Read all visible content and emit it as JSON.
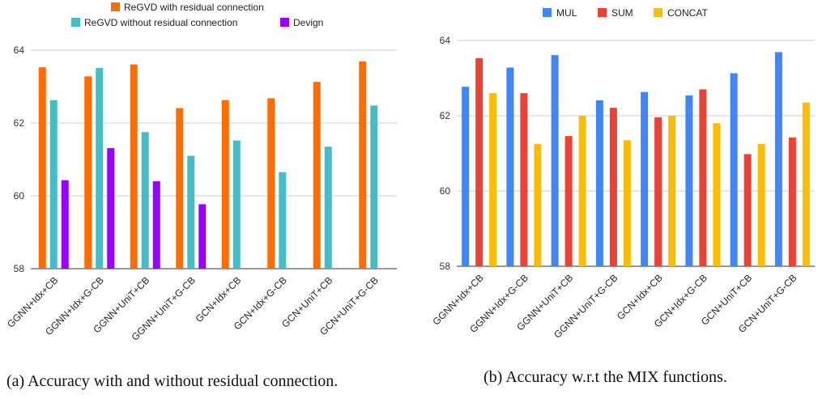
{
  "chart_data": [
    {
      "type": "bar",
      "caption": "(a) Accuracy with and without residual connection.",
      "categories": [
        "GGNN+Idx+CB",
        "GGNN+Idx+G-CB",
        "GGNN+UniT+CB",
        "GGNN+UniT+G-CB",
        "GCN+Idx+CB",
        "GCN+Idx+G-CB",
        "GCN+UniT+CB",
        "GCN+UniT+G-CB"
      ],
      "series": [
        {
          "name": "ReGVD  with residual connection",
          "color": "#ff6d01",
          "values": [
            63.53,
            63.28,
            63.61,
            62.41,
            62.63,
            62.68,
            63.13,
            63.69
          ]
        },
        {
          "name": "ReGVD without residual connection",
          "color": "#46bdc6",
          "values": [
            62.63,
            63.51,
            61.75,
            61.1,
            61.52,
            60.65,
            61.35,
            62.48
          ]
        },
        {
          "name": "Devign",
          "color": "#9900ff",
          "values": [
            60.43,
            61.31,
            60.4,
            59.77,
            null,
            null,
            null,
            null
          ]
        }
      ],
      "ylim": [
        58,
        64
      ],
      "yticks": [
        "58",
        "60",
        "62",
        "64"
      ],
      "legend": "top",
      "grid": true
    },
    {
      "type": "bar",
      "caption": "(b) Accuracy w.r.t the MIX functions.",
      "categories": [
        "GGNN+Idx+CB",
        "GGNN+Idx+G-CB",
        "GGNN+UniT+CB",
        "GGNN+UniT+G-CB",
        "GCN+Idx+CB",
        "GCN+Idx+G-CB",
        "GCN+UniT+CB",
        "GCN+UniT+G-CB"
      ],
      "series": [
        {
          "name": "MUL",
          "color": "#4285f4",
          "values": [
            62.77,
            63.28,
            63.61,
            62.41,
            62.63,
            62.54,
            63.13,
            63.69
          ]
        },
        {
          "name": "SUM",
          "color": "#ea4335",
          "values": [
            63.53,
            62.6,
            61.46,
            62.21,
            61.96,
            62.7,
            60.98,
            61.42
          ]
        },
        {
          "name": "CONCAT",
          "color": "#fbbc04",
          "values": [
            62.6,
            61.25,
            62.0,
            61.35,
            62.0,
            61.8,
            61.25,
            62.35
          ]
        }
      ],
      "ylim": [
        58,
        64
      ],
      "yticks": [
        "58",
        "60",
        "62",
        "64"
      ],
      "legend": "top",
      "grid": true
    }
  ]
}
